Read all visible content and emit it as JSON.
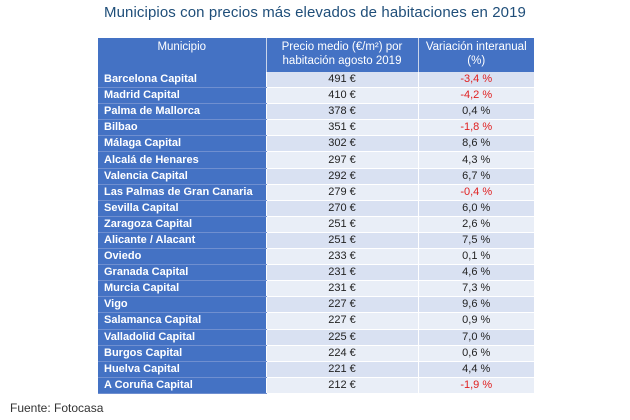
{
  "title": "Municipios con precios más elevados de habitaciones en 2019",
  "columns": {
    "municipio": "Municipio",
    "precio": "Precio medio (€/m²) por habitación agosto 2019",
    "variacion": "Variación interanual (%)"
  },
  "rows": [
    {
      "municipio": "Barcelona Capital",
      "precio": "491 €",
      "variacion": "-3,4 %"
    },
    {
      "municipio": "Madrid Capital",
      "precio": "410 €",
      "variacion": "-4,2 %"
    },
    {
      "municipio": "Palma de Mallorca",
      "precio": "378 €",
      "variacion": "0,4 %"
    },
    {
      "municipio": "Bilbao",
      "precio": "351 €",
      "variacion": "-1,8 %"
    },
    {
      "municipio": "Málaga Capital",
      "precio": "302 €",
      "variacion": "8,6 %"
    },
    {
      "municipio": "Alcalá de Henares",
      "precio": "297 €",
      "variacion": "4,3 %"
    },
    {
      "municipio": "Valencia Capital",
      "precio": "292 €",
      "variacion": "6,7 %"
    },
    {
      "municipio": "Las Palmas de Gran Canaria",
      "precio": "279 €",
      "variacion": "-0,4 %"
    },
    {
      "municipio": "Sevilla Capital",
      "precio": "270 €",
      "variacion": "6,0 %"
    },
    {
      "municipio": "Zaragoza Capital",
      "precio": "251 €",
      "variacion": "2,6 %"
    },
    {
      "municipio": "Alicante / Alacant",
      "precio": "251 €",
      "variacion": "7,5 %"
    },
    {
      "municipio": "Oviedo",
      "precio": "233 €",
      "variacion": "0,1 %"
    },
    {
      "municipio": "Granada Capital",
      "precio": "231 €",
      "variacion": "4,6 %"
    },
    {
      "municipio": "Murcia Capital",
      "precio": "231 €",
      "variacion": "7,3 %"
    },
    {
      "municipio": "Vigo",
      "precio": "227 €",
      "variacion": "9,6 %"
    },
    {
      "municipio": "Salamanca Capital",
      "precio": "227 €",
      "variacion": "0,9 %"
    },
    {
      "municipio": "Valladolid Capital",
      "precio": "225 €",
      "variacion": "7,0 %"
    },
    {
      "municipio": "Burgos Capital",
      "precio": "224 €",
      "variacion": "0,6 %"
    },
    {
      "municipio": "Huelva Capital",
      "precio": "221 €",
      "variacion": "4,4 %"
    },
    {
      "municipio": "A Coruña Capital",
      "precio": "212 €",
      "variacion": "-1,9 %"
    }
  ],
  "colors": {
    "header_bg": "#4472c4",
    "negative": "#e02020",
    "title": "#1f4e79"
  },
  "source": "Fuente: Fotocasa"
}
